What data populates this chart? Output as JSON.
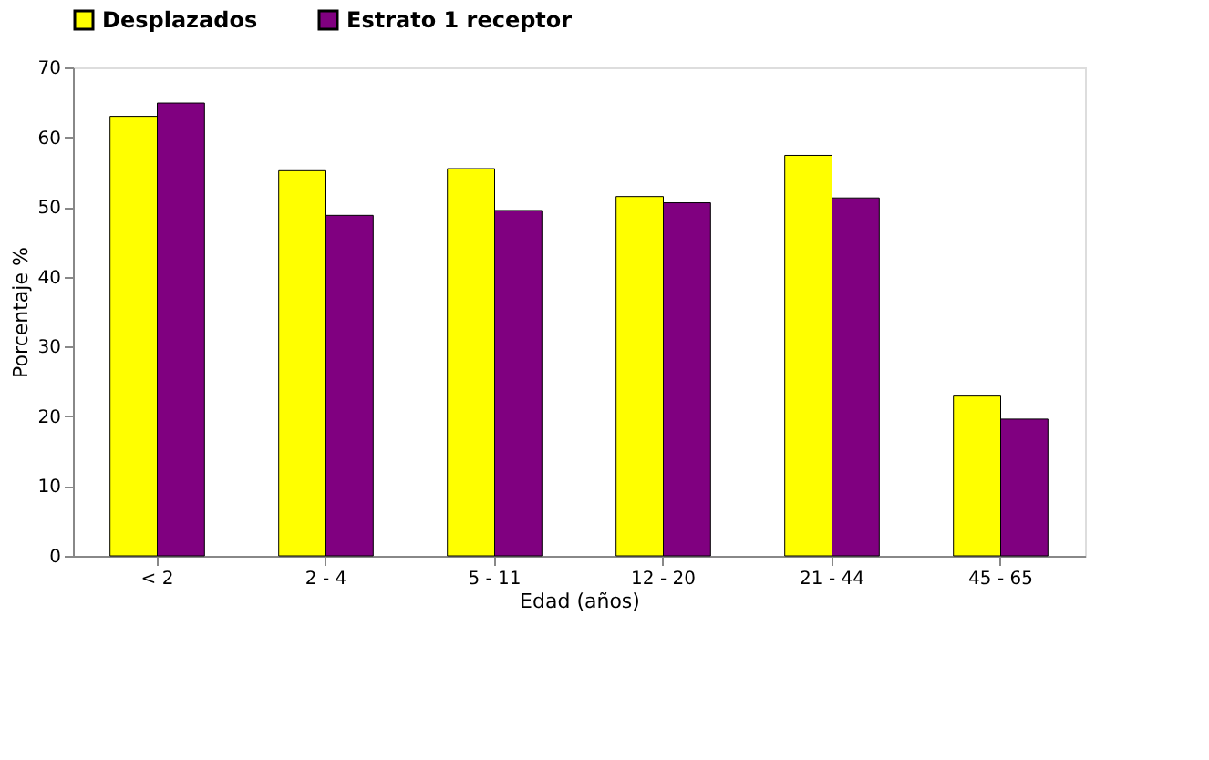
{
  "chart_data": {
    "type": "bar",
    "xlabel": "Edad (años)",
    "ylabel": "Porcentaje %",
    "categories": [
      "< 2",
      "2 - 4",
      "5 - 11",
      "12 - 20",
      "21 - 44",
      "45 - 65"
    ],
    "series": [
      {
        "name": "Desplazados",
        "color": "#ffff00",
        "values": [
          63.0,
          55.2,
          55.5,
          51.5,
          57.4,
          22.9
        ]
      },
      {
        "name": "Estrato 1 receptor",
        "color": "#800080",
        "values": [
          64.9,
          48.8,
          49.5,
          50.6,
          51.3,
          19.6
        ]
      }
    ],
    "ylim": [
      0,
      70
    ],
    "yticks": [
      0,
      10,
      20,
      30,
      40,
      50,
      60,
      70
    ],
    "grid": false,
    "legend": "top"
  }
}
